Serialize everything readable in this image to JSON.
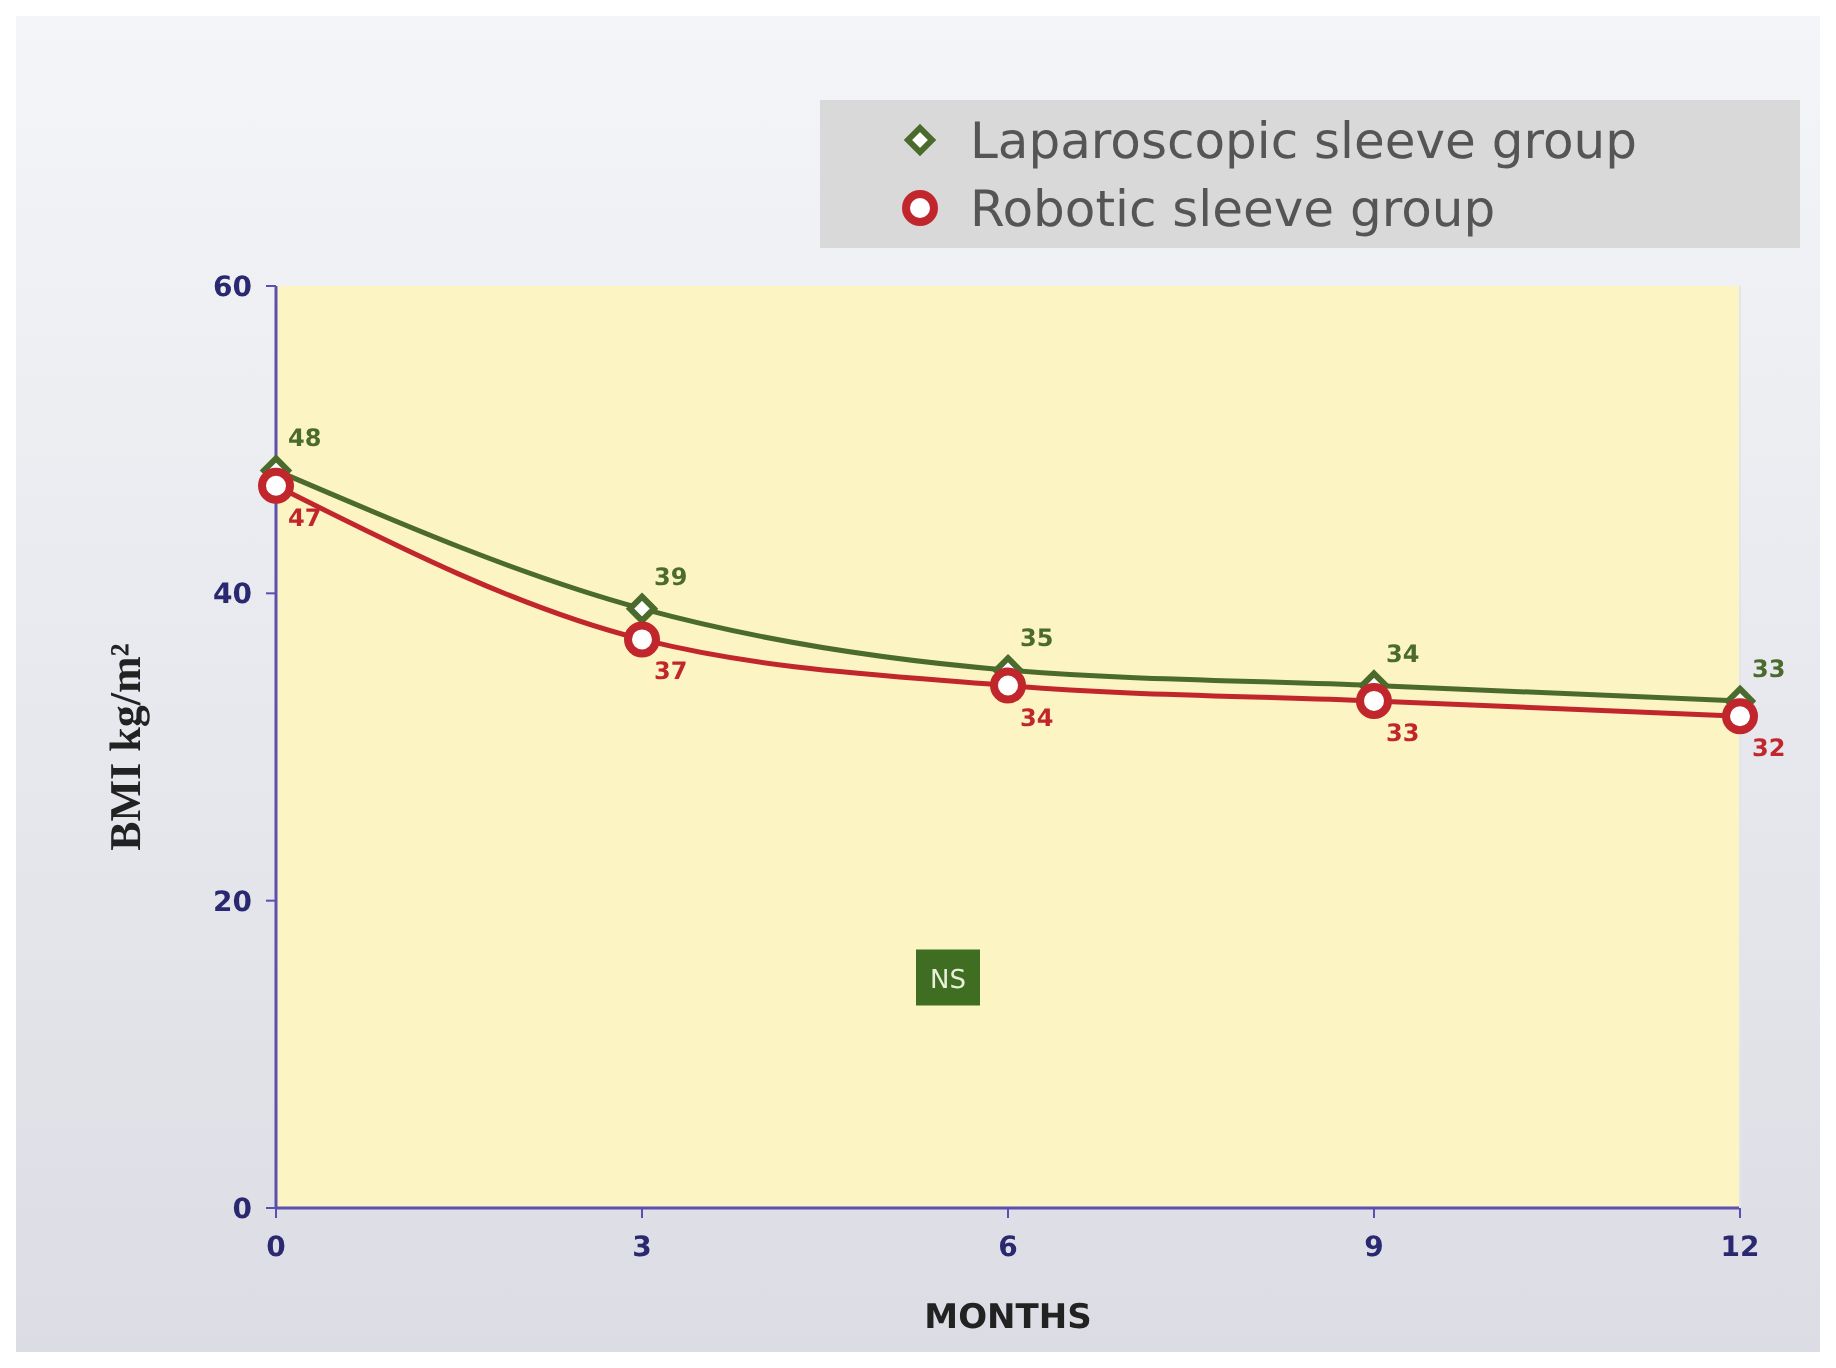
{
  "chart_data": {
    "type": "line",
    "xlabel": "MONTHS",
    "ylabel": "BMI kg/m²",
    "x": [
      0,
      3,
      6,
      9,
      12
    ],
    "xlim": [
      0,
      12
    ],
    "xticks": [
      0,
      3,
      6,
      9,
      12
    ],
    "ylim": [
      0,
      60
    ],
    "yticks": [
      0,
      20,
      40,
      60
    ],
    "series": [
      {
        "name": "Laparoscopic sleeve group",
        "color": "#4a6b2c",
        "marker": "diamond",
        "values": [
          48,
          39,
          35,
          34,
          33
        ]
      },
      {
        "name": "Robotic sleeve group",
        "color": "#c0262c",
        "marker": "circle",
        "values": [
          47,
          37,
          34,
          33,
          32
        ]
      }
    ],
    "data_labels": true,
    "legend": "top right",
    "grid": false,
    "line_style": "solid",
    "annotations": [
      "NS"
    ]
  }
}
